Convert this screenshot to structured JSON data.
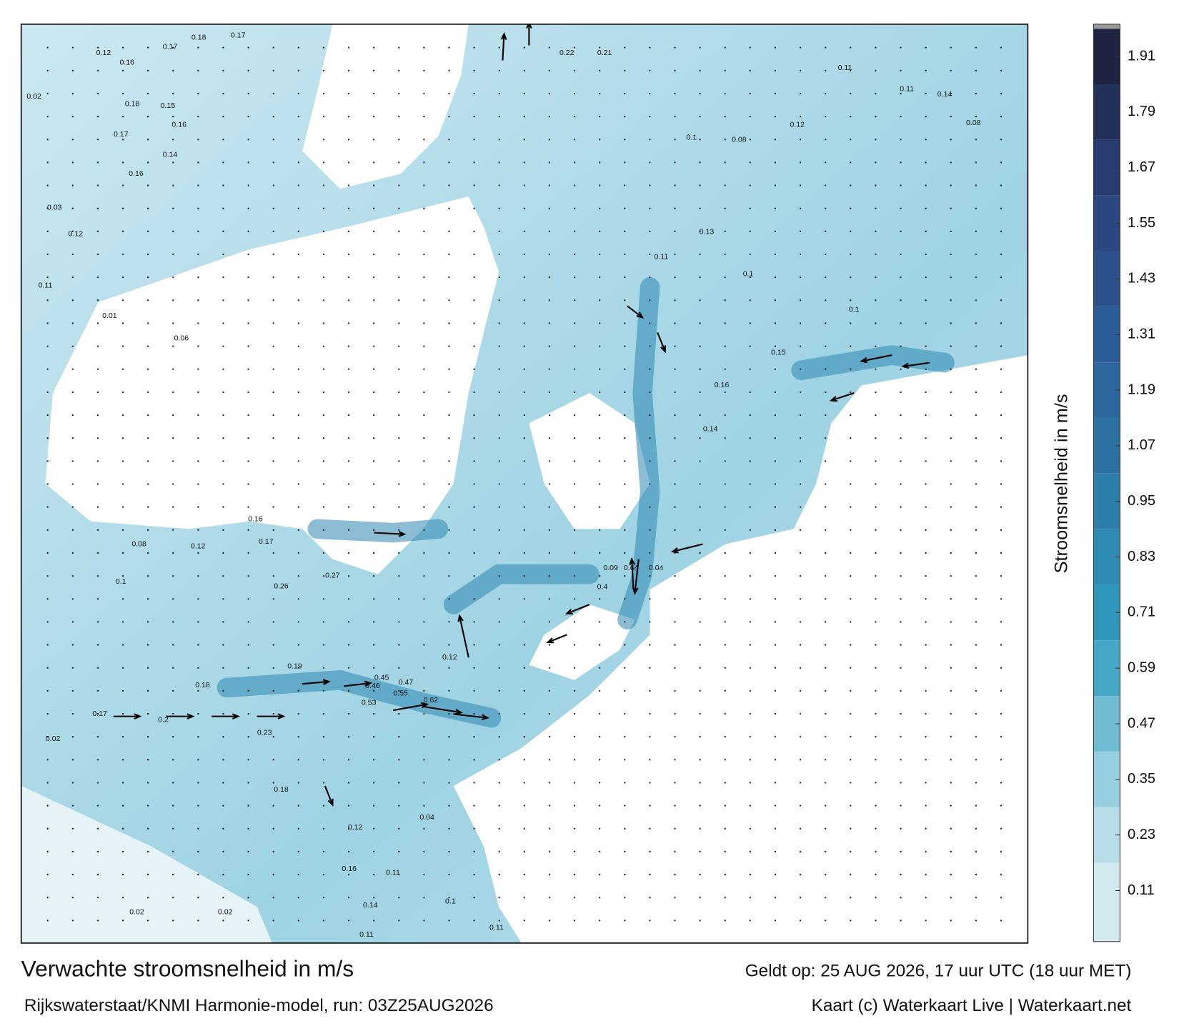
{
  "title": "Verwachte stroomsnelheid in m/s",
  "source": "Rijkswaterstaat/KNMI Harmonie-model, run: 03Z25AUG2026",
  "valid_time": "Geldt op: 25 AUG 2026, 17 uur UTC (18 uur MET)",
  "credit": "Kaart (c) Waterkaart Live | Waterkaart.net",
  "colorbar": {
    "label": "Stroomsnelheid in m/s",
    "range": [
      0,
      1.97
    ],
    "ticks": [
      0.11,
      0.23,
      0.35,
      0.47,
      0.59,
      0.71,
      0.83,
      0.95,
      1.07,
      1.19,
      1.31,
      1.43,
      1.55,
      1.67,
      1.79,
      1.91
    ],
    "colormap": [
      "#eef6f9",
      "#9fd3e2",
      "#2f9dc0",
      "#2d7ba8",
      "#2b5c98",
      "#2a3f78",
      "#1b1d35"
    ]
  },
  "map_labels": [
    0.12,
    0.18,
    0.17,
    0.17,
    0.16,
    0.02,
    0.18,
    0.15,
    0.16,
    0.17,
    0.14,
    0.16,
    0.03,
    0.12,
    0.11,
    0.01,
    0.06,
    0.21,
    0.22,
    0.11,
    0.11,
    0.14,
    0.08,
    0.12,
    0.1,
    0.08,
    0.13,
    0.11,
    0.1,
    0.1,
    0.15,
    0.16,
    0.14,
    0.09,
    0.64,
    0.04,
    0.4,
    0.62,
    0.53,
    0.55,
    0.47,
    0.45,
    0.46,
    0.19,
    0.18,
    0.17,
    0.2,
    0.02,
    0.1,
    0.08,
    0.12,
    0.17,
    0.16,
    0.26,
    0.27,
    0.18,
    0.12,
    0.16,
    0.11,
    0.14,
    0.11,
    0.02,
    0.02,
    0.11,
    0.1,
    0.23,
    0.12,
    0.04
  ]
}
